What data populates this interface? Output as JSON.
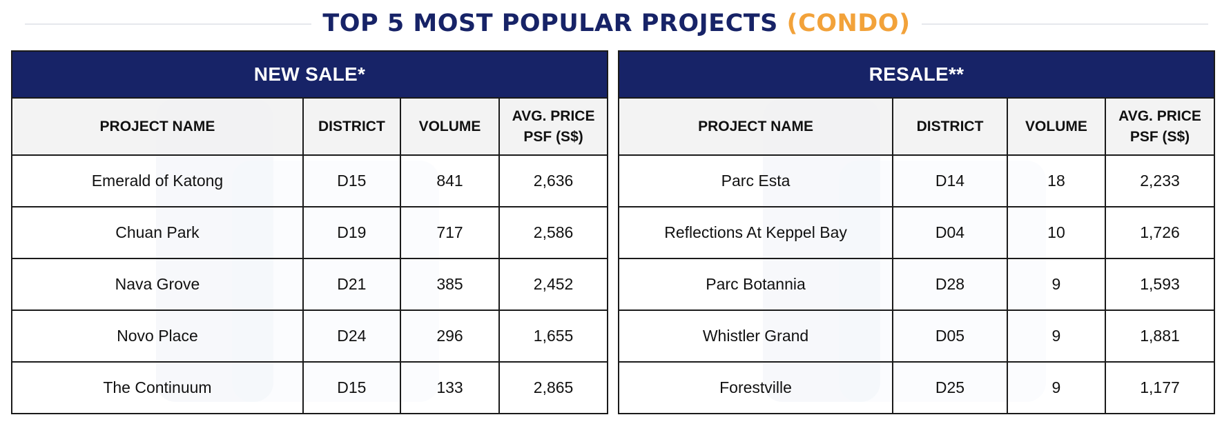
{
  "title": {
    "main": "TOP 5 MOST POPULAR PROJECTS ",
    "accent": "(CONDO)"
  },
  "colors": {
    "header_bg": "#172367",
    "accent": "#f2a23a",
    "col_header_bg": "#f2f2f2"
  },
  "tables": [
    {
      "heading": "NEW SALE*",
      "columns": [
        "PROJECT NAME",
        "DISTRICT",
        "VOLUME",
        "AVG. PRICE PSF (S$)"
      ],
      "rows": [
        [
          "Emerald of Katong",
          "D15",
          "841",
          "2,636"
        ],
        [
          "Chuan Park",
          "D19",
          "717",
          "2,586"
        ],
        [
          "Nava Grove",
          "D21",
          "385",
          "2,452"
        ],
        [
          "Novo Place",
          "D24",
          "296",
          "1,655"
        ],
        [
          "The Continuum",
          "D15",
          "133",
          "2,865"
        ]
      ]
    },
    {
      "heading": "RESALE**",
      "columns": [
        "PROJECT NAME",
        "DISTRICT",
        "VOLUME",
        "AVG. PRICE PSF (S$)"
      ],
      "rows": [
        [
          "Parc Esta",
          "D14",
          "18",
          "2,233"
        ],
        [
          "Reflections At Keppel Bay",
          "D04",
          "10",
          "1,726"
        ],
        [
          "Parc Botannia",
          "D28",
          "9",
          "1,593"
        ],
        [
          "Whistler Grand",
          "D05",
          "9",
          "1,881"
        ],
        [
          "Forestville",
          "D25",
          "9",
          "1,177"
        ]
      ]
    }
  ]
}
